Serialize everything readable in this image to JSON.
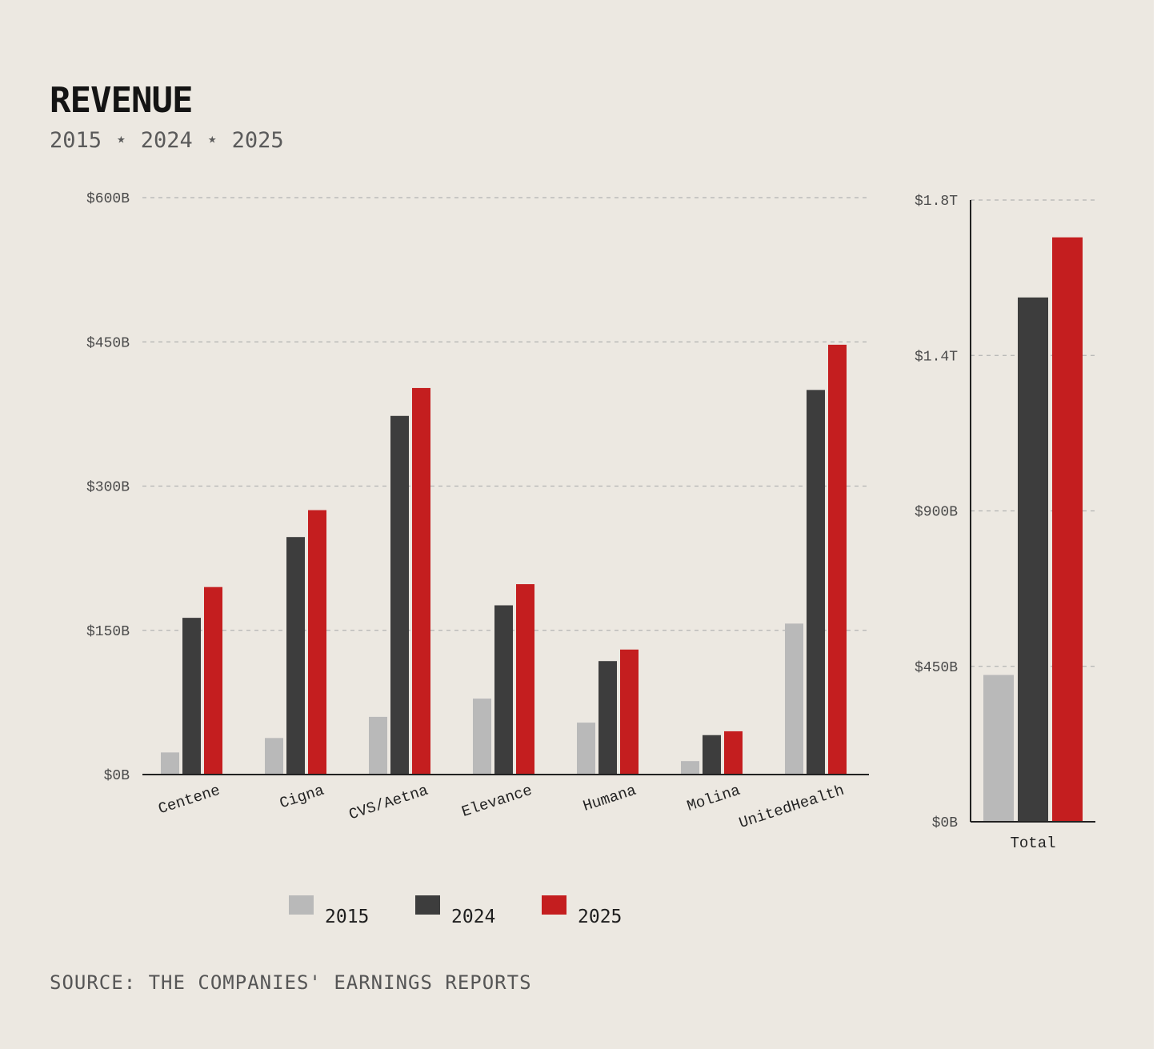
{
  "title": "REVENUE",
  "subtitle": "2015 ⋆ 2024 ⋆ 2025",
  "source": "SOURCE: THE COMPANIES' EARNINGS REPORTS",
  "colors": {
    "background": "#ece8e1",
    "y2015": "#b9b9b9",
    "y2024": "#3d3d3d",
    "y2025": "#c41e1f",
    "grid": "#b3b3b3",
    "axis": "#222222"
  },
  "legend": [
    {
      "label": "2015",
      "color": "#b9b9b9"
    },
    {
      "label": "2024",
      "color": "#3d3d3d"
    },
    {
      "label": "2025",
      "color": "#c41e1f"
    }
  ],
  "chart_data": [
    {
      "type": "bar",
      "title": "REVENUE",
      "subtitle": "2015 ⋆ 2024 ⋆ 2025",
      "categories": [
        "Centene",
        "Cigna",
        "CVS/Aetna",
        "Elevance",
        "Humana",
        "Molina",
        "UnitedHealth"
      ],
      "series": [
        {
          "name": "2015",
          "values": [
            23,
            38,
            60,
            79,
            54,
            14,
            157
          ]
        },
        {
          "name": "2024",
          "values": [
            163,
            247,
            373,
            176,
            118,
            41,
            400
          ]
        },
        {
          "name": "2025",
          "values": [
            195,
            275,
            402,
            198,
            130,
            45,
            447
          ]
        }
      ],
      "unit": "$B",
      "ylim": [
        0,
        600
      ],
      "yticks": [
        0,
        150,
        300,
        450,
        600
      ],
      "ytick_labels": [
        "$0B",
        "$150B",
        "$300B",
        "$450B",
        "$600B"
      ],
      "grid": true,
      "xlabel": "",
      "ylabel": ""
    },
    {
      "type": "bar",
      "categories": [
        "Total"
      ],
      "series": [
        {
          "name": "2015",
          "values": [
            425
          ]
        },
        {
          "name": "2024",
          "values": [
            1518
          ]
        },
        {
          "name": "2025",
          "values": [
            1692
          ]
        }
      ],
      "unit": "$B",
      "ylim": [
        0,
        1800
      ],
      "yticks": [
        0,
        450,
        900,
        1350,
        1800
      ],
      "ytick_labels": [
        "$0B",
        "$450B",
        "$900B",
        "$1.4T",
        "$1.8T"
      ],
      "grid": true,
      "xlabel": "",
      "ylabel": ""
    }
  ]
}
